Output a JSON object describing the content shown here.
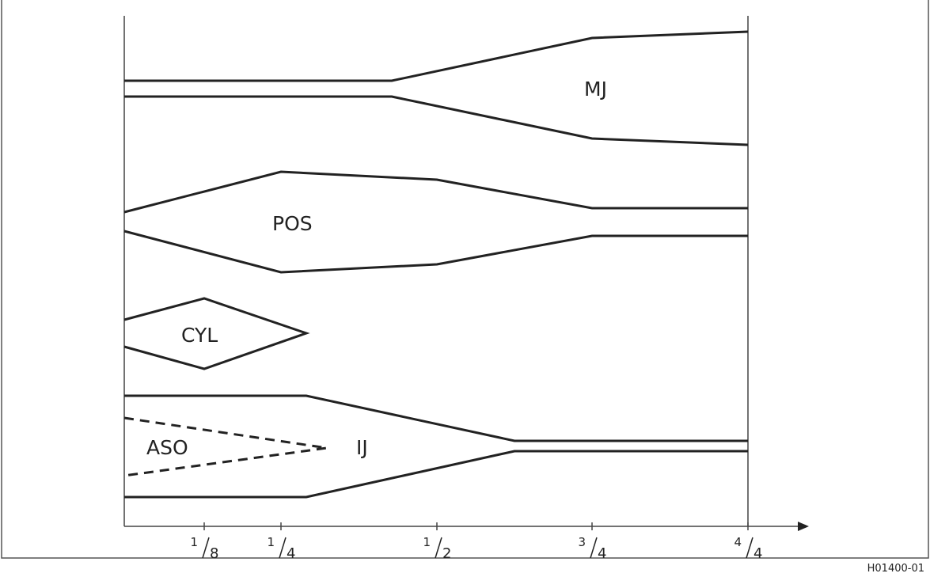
{
  "regions": [
    {
      "label": "MJ"
    },
    {
      "label": "POS"
    },
    {
      "label": "CYL"
    },
    {
      "label": "ASO"
    },
    {
      "label": "IJ"
    }
  ],
  "axis_ticks": [
    {
      "numerator": "1",
      "denominator": "8"
    },
    {
      "numerator": "1",
      "denominator": "4"
    },
    {
      "numerator": "1",
      "denominator": "2"
    },
    {
      "numerator": "3",
      "denominator": "4"
    },
    {
      "numerator": "4",
      "denominator": "4"
    }
  ],
  "figure_id": "H01400-01"
}
